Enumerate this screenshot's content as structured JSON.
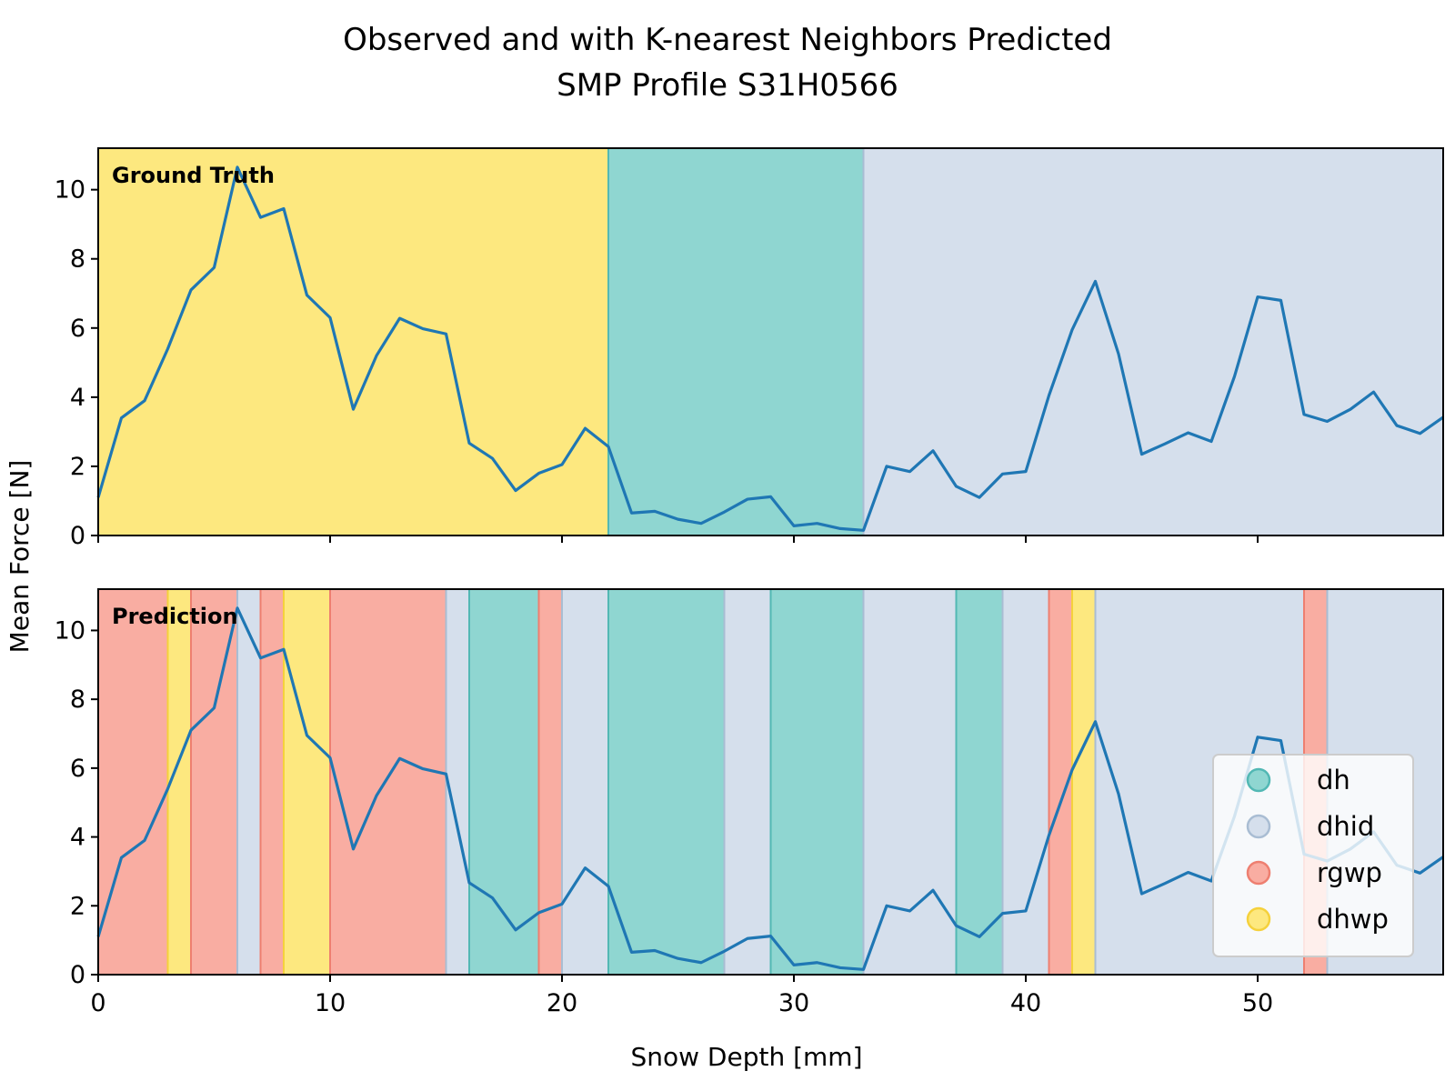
{
  "chart_data": {
    "type": "line",
    "title_lines": [
      "Observed and with K-nearest Neighbors Predicted",
      "SMP Profile S31H0566"
    ],
    "xlabel": "Snow Depth [mm]",
    "ylabel": "Mean Force [N]",
    "xlim": [
      0,
      58
    ],
    "ylim": [
      0,
      11.2
    ],
    "x_ticks": [
      0,
      10,
      20,
      30,
      40,
      50
    ],
    "y_ticks": [
      0,
      2,
      4,
      6,
      8,
      10
    ],
    "x_tick_labels": [
      "0",
      "10",
      "20",
      "30",
      "40",
      "50"
    ],
    "y_tick_labels": [
      "0",
      "2",
      "4",
      "6",
      "8",
      "10"
    ],
    "series_color": "#1f77b4",
    "series": [
      {
        "x": [
          0,
          1,
          2,
          3,
          4,
          5,
          6,
          7,
          8,
          9,
          10,
          11,
          12,
          13,
          14,
          15,
          16,
          17,
          18,
          19,
          20,
          21,
          22,
          23,
          24,
          25,
          26,
          27,
          28,
          29,
          30,
          31,
          32,
          33,
          34,
          35,
          36,
          37,
          38,
          39,
          40,
          41,
          42,
          43,
          44,
          45,
          46,
          47,
          48,
          49,
          50,
          51,
          52,
          53,
          54,
          55,
          56,
          57,
          58
        ],
        "values": [
          1.1,
          3.4,
          3.9,
          5.4,
          7.1,
          7.75,
          10.65,
          9.2,
          9.45,
          6.95,
          6.3,
          3.65,
          5.2,
          6.28,
          5.98,
          5.83,
          2.67,
          2.23,
          1.3,
          1.8,
          2.05,
          3.1,
          2.57,
          0.65,
          0.7,
          0.47,
          0.35,
          0.68,
          1.05,
          1.12,
          0.28,
          0.35,
          0.2,
          0.15,
          2.0,
          1.85,
          2.45,
          1.42,
          1.1,
          1.78,
          1.85,
          4.05,
          5.95,
          7.35,
          5.25,
          2.35,
          2.65,
          2.97,
          2.72,
          4.6,
          6.9,
          6.8,
          3.5,
          3.3,
          3.65,
          4.15,
          3.18,
          2.95,
          3.42
        ]
      }
    ],
    "classes": [
      {
        "name": "dh",
        "color": "#8fd6d1",
        "edge": "#52b8b4"
      },
      {
        "name": "dhid",
        "color": "#d5dfec",
        "edge": "#a9bdd3"
      },
      {
        "name": "rgwp",
        "color": "#f9ada2",
        "edge": "#ee7f70"
      },
      {
        "name": "dhwp",
        "color": "#fde87f",
        "edge": "#f5d13c"
      }
    ],
    "panels": [
      {
        "label": "Ground Truth",
        "segments": [
          {
            "start": 0,
            "end": 22,
            "class": "dhwp"
          },
          {
            "start": 22,
            "end": 33,
            "class": "dh"
          },
          {
            "start": 33,
            "end": 58,
            "class": "dhid"
          }
        ]
      },
      {
        "label": "Prediction",
        "segments": [
          {
            "start": 0,
            "end": 3,
            "class": "rgwp"
          },
          {
            "start": 3,
            "end": 4,
            "class": "dhwp"
          },
          {
            "start": 4,
            "end": 6,
            "class": "rgwp"
          },
          {
            "start": 6,
            "end": 7,
            "class": "dhid"
          },
          {
            "start": 7,
            "end": 8,
            "class": "rgwp"
          },
          {
            "start": 8,
            "end": 10,
            "class": "dhwp"
          },
          {
            "start": 10,
            "end": 15,
            "class": "rgwp"
          },
          {
            "start": 15,
            "end": 16,
            "class": "dhid"
          },
          {
            "start": 16,
            "end": 19,
            "class": "dh"
          },
          {
            "start": 19,
            "end": 20,
            "class": "rgwp"
          },
          {
            "start": 20,
            "end": 22,
            "class": "dhid"
          },
          {
            "start": 22,
            "end": 27,
            "class": "dh"
          },
          {
            "start": 27,
            "end": 29,
            "class": "dhid"
          },
          {
            "start": 29,
            "end": 33,
            "class": "dh"
          },
          {
            "start": 33,
            "end": 37,
            "class": "dhid"
          },
          {
            "start": 37,
            "end": 39,
            "class": "dh"
          },
          {
            "start": 39,
            "end": 41,
            "class": "dhid"
          },
          {
            "start": 41,
            "end": 42,
            "class": "rgwp"
          },
          {
            "start": 42,
            "end": 43,
            "class": "dhwp"
          },
          {
            "start": 43,
            "end": 52,
            "class": "dhid"
          },
          {
            "start": 52,
            "end": 53,
            "class": "rgwp"
          },
          {
            "start": 53,
            "end": 58,
            "class": "dhid"
          }
        ]
      }
    ],
    "legend": {
      "location": "lower-right of bottom panel",
      "entries": [
        "dh",
        "dhid",
        "rgwp",
        "dhwp"
      ]
    },
    "grid": false
  }
}
